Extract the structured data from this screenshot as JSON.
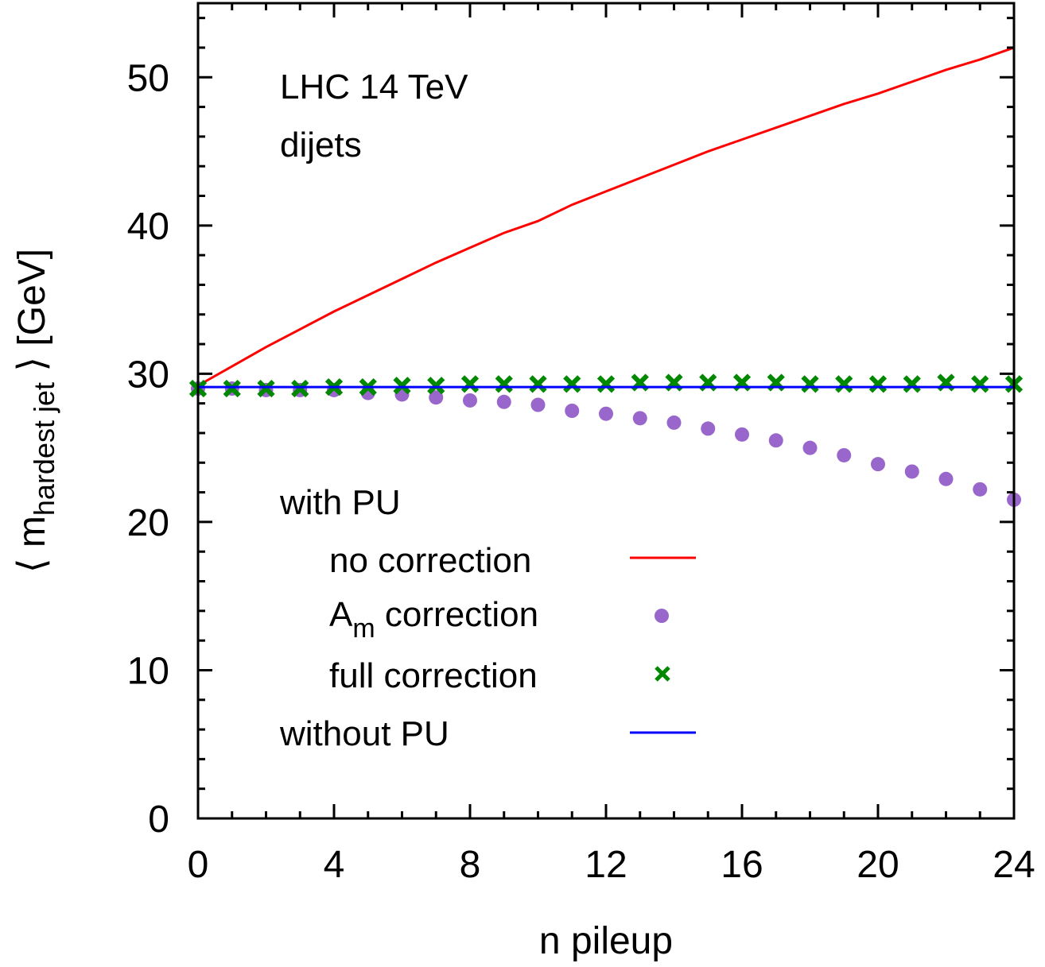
{
  "chart_data": {
    "type": "line",
    "title": "",
    "annotations": [
      "LHC 14 TeV",
      "dijets"
    ],
    "xlabel": "n pileup",
    "ylabel": {
      "prefix": "⟨ m",
      "subscript": "hardest jet",
      "suffix": " ⟩  [GeV]"
    },
    "xlim": [
      0,
      24
    ],
    "ylim": [
      0,
      55
    ],
    "xticks": [
      0,
      4,
      8,
      12,
      16,
      20,
      24
    ],
    "yticks": [
      0,
      10,
      20,
      30,
      40,
      50
    ],
    "x_minor_step": 1,
    "y_minor_step": 2,
    "grid": false,
    "legend": {
      "position": "lower-left inside",
      "header": "with PU",
      "entries": [
        {
          "label": "no correction",
          "indent": true,
          "style": "line",
          "color": "#ff0000"
        },
        {
          "label_main": "A",
          "label_sub": "m",
          "label_rest": " correction",
          "indent": true,
          "style": "dot",
          "color": "#9966cc"
        },
        {
          "label": "full correction",
          "indent": true,
          "style": "cross",
          "color": "#008800"
        },
        {
          "label": "without PU",
          "indent": false,
          "style": "line",
          "color": "#0000ff"
        }
      ]
    },
    "x": [
      0,
      1,
      2,
      3,
      4,
      5,
      6,
      7,
      8,
      9,
      10,
      11,
      12,
      13,
      14,
      15,
      16,
      17,
      18,
      19,
      20,
      21,
      22,
      23,
      24
    ],
    "series": [
      {
        "name": "no correction",
        "style": "line",
        "color": "#ff0000",
        "values": [
          29.2,
          30.5,
          31.8,
          33.0,
          34.2,
          35.3,
          36.4,
          37.5,
          38.5,
          39.5,
          40.3,
          41.4,
          42.3,
          43.2,
          44.1,
          45.0,
          45.8,
          46.6,
          47.4,
          48.2,
          48.9,
          49.7,
          50.5,
          51.2,
          52.0
        ]
      },
      {
        "name": "A_m correction",
        "style": "dot",
        "color": "#9966cc",
        "values": [
          29.0,
          29.0,
          28.9,
          28.9,
          28.9,
          28.7,
          28.6,
          28.4,
          28.2,
          28.1,
          27.9,
          27.5,
          27.3,
          27.0,
          26.7,
          26.3,
          25.9,
          25.5,
          25.0,
          24.5,
          23.9,
          23.4,
          22.9,
          22.2,
          21.5
        ]
      },
      {
        "name": "full correction",
        "style": "cross",
        "color": "#008800",
        "values": [
          29.0,
          29.0,
          29.0,
          29.0,
          29.1,
          29.1,
          29.2,
          29.2,
          29.3,
          29.3,
          29.3,
          29.3,
          29.3,
          29.4,
          29.4,
          29.4,
          29.4,
          29.4,
          29.3,
          29.3,
          29.3,
          29.3,
          29.4,
          29.3,
          29.3
        ]
      },
      {
        "name": "without PU",
        "style": "line",
        "color": "#0000ff",
        "values": [
          29.1,
          29.1,
          29.1,
          29.1,
          29.1,
          29.1,
          29.1,
          29.1,
          29.1,
          29.1,
          29.1,
          29.1,
          29.1,
          29.1,
          29.1,
          29.1,
          29.1,
          29.1,
          29.1,
          29.1,
          29.1,
          29.1,
          29.1,
          29.1,
          29.1
        ]
      }
    ]
  }
}
